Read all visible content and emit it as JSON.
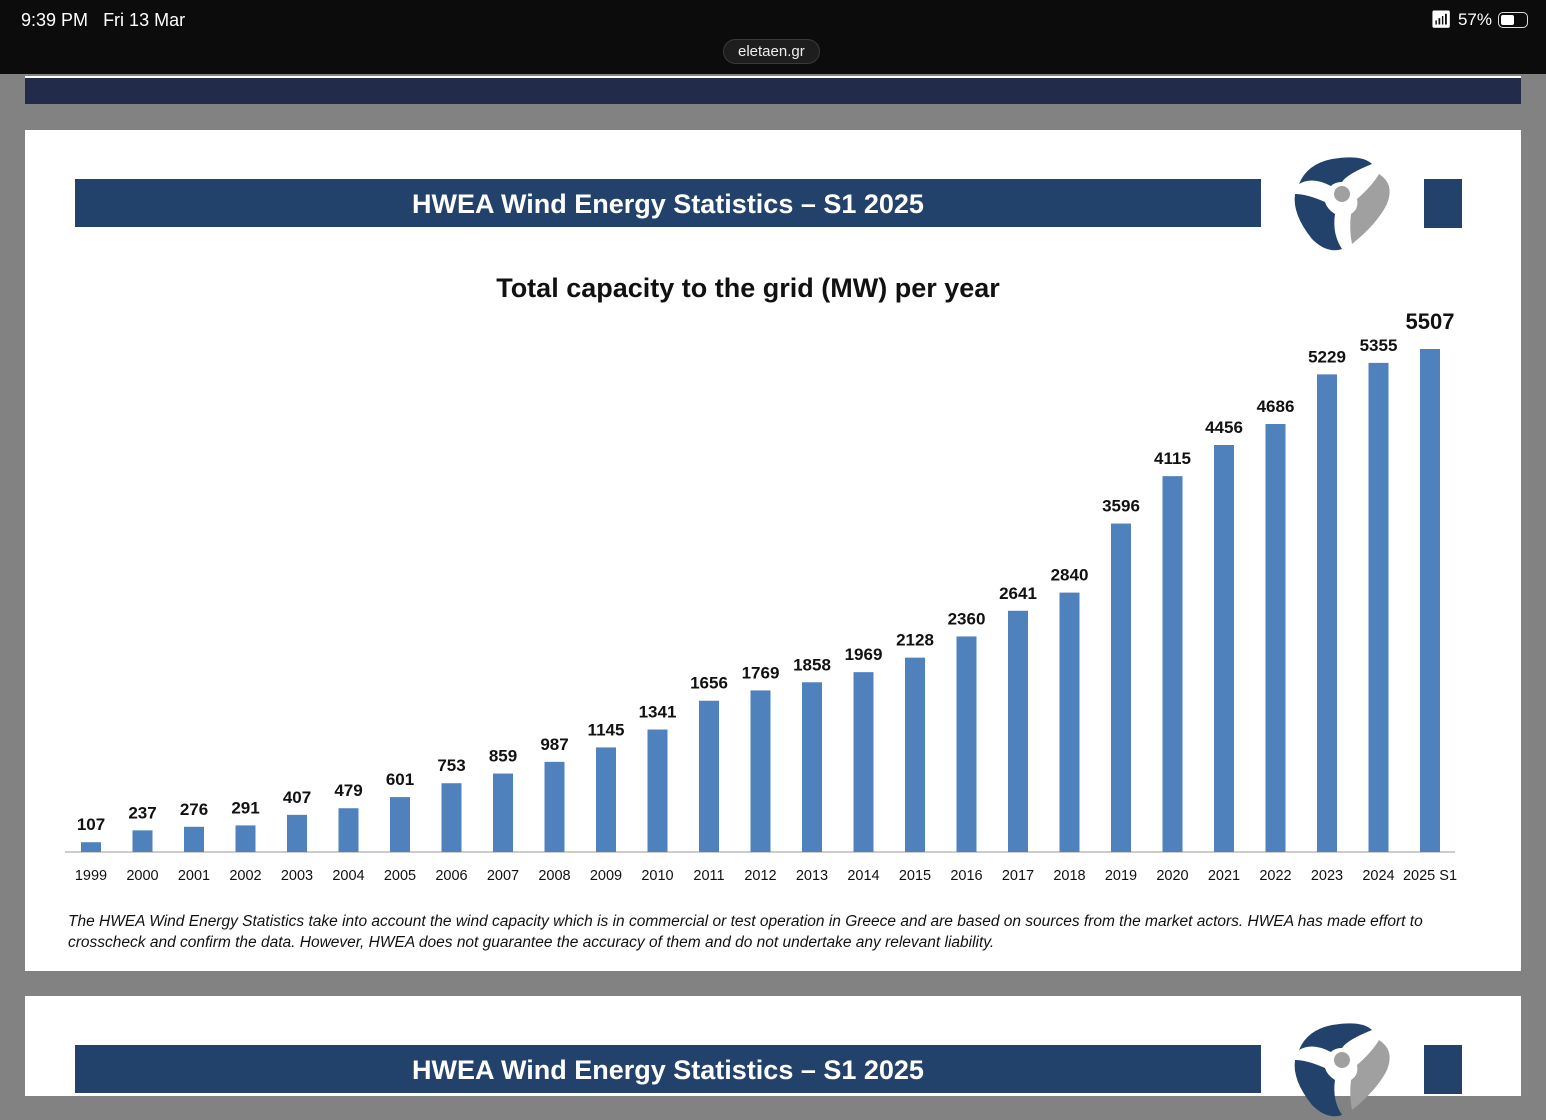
{
  "status": {
    "time": "9:39 PM",
    "date": "Fri 13 Mar",
    "battery": "57%",
    "battery_level": 0.57,
    "url": "eletaen.gr"
  },
  "slide": {
    "header": "HWEA Wind Energy Statistics – S1 2025",
    "footnote": "The HWEA Wind Energy Statistics take into account the wind capacity which is in commercial or test operation in Greece and are based on sources from the market actors. HWEA has made effort to crosscheck and confirm the data. However, HWEA does not guarantee the accuracy of them and do not undertake any relevant liability."
  },
  "slide2": {
    "header": "HWEA Wind Energy Statistics – S1 2025"
  },
  "colors": {
    "bar": "#4f81bd",
    "header": "#22426b",
    "logo_gray": "#a0a0a0"
  },
  "chart_data": {
    "type": "bar",
    "title": "Total capacity to the grid (MW) per year",
    "xlabel": "",
    "ylabel": "",
    "ylim": [
      0,
      5507
    ],
    "grid": false,
    "categories": [
      "1999",
      "2000",
      "2001",
      "2002",
      "2003",
      "2004",
      "2005",
      "2006",
      "2007",
      "2008",
      "2009",
      "2010",
      "2011",
      "2012",
      "2013",
      "2014",
      "2015",
      "2016",
      "2017",
      "2018",
      "2019",
      "2020",
      "2021",
      "2022",
      "2023",
      "2024",
      "2025 S1"
    ],
    "values": [
      107,
      237,
      276,
      291,
      407,
      479,
      601,
      753,
      859,
      987,
      1145,
      1341,
      1656,
      1769,
      1858,
      1969,
      2128,
      2360,
      2641,
      2840,
      3596,
      4115,
      4456,
      4686,
      5229,
      5355,
      5507
    ]
  }
}
